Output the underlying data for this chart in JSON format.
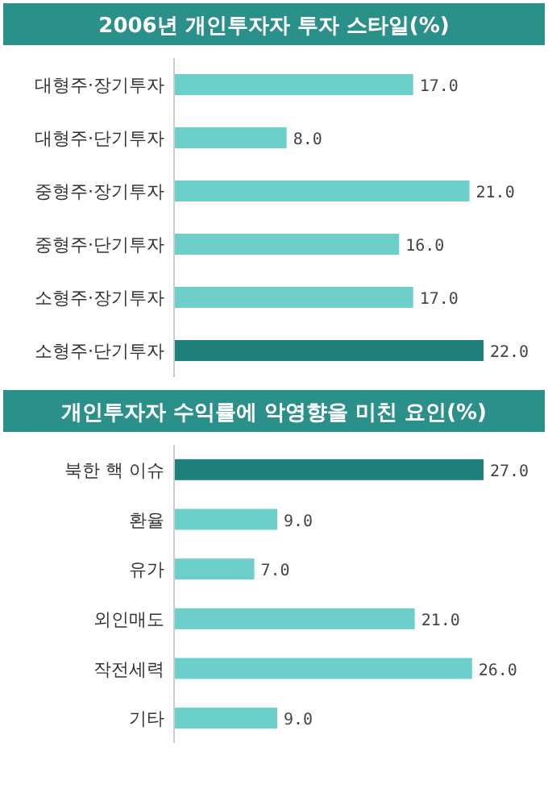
{
  "chart_data": [
    {
      "type": "bar",
      "orientation": "horizontal",
      "title": "2006년 개인투자자 투자 스타일(%)",
      "categories": [
        "대형주·장기투자",
        "대형주·단기투자",
        "중형주·장기투자",
        "중형주·단기투자",
        "소형주·장기투자",
        "소형주·단기투자"
      ],
      "values": [
        17.0,
        8.0,
        21.0,
        16.0,
        17.0,
        22.0
      ],
      "value_labels": [
        "17.0",
        "8.0",
        "21.0",
        "16.0",
        "17.0",
        "22.0"
      ],
      "colors": [
        "#6ccfca",
        "#6ccfca",
        "#6ccfca",
        "#6ccfca",
        "#6ccfca",
        "#1f7f7b"
      ]
    },
    {
      "type": "bar",
      "orientation": "horizontal",
      "title": "개인투자자 수익률에 악영향을 미친 요인(%)",
      "categories": [
        "북한 핵 이슈",
        "환율",
        "유가",
        "외인매도",
        "작전세력",
        "기타"
      ],
      "values": [
        27.0,
        9.0,
        7.0,
        21.0,
        26.0,
        9.0
      ],
      "value_labels": [
        "27.0",
        "9.0",
        "7.0",
        "21.0",
        "26.0",
        "9.0"
      ],
      "colors": [
        "#1f7f7b",
        "#6ccfca",
        "#6ccfca",
        "#6ccfca",
        "#6ccfca",
        "#6ccfca"
      ]
    }
  ]
}
